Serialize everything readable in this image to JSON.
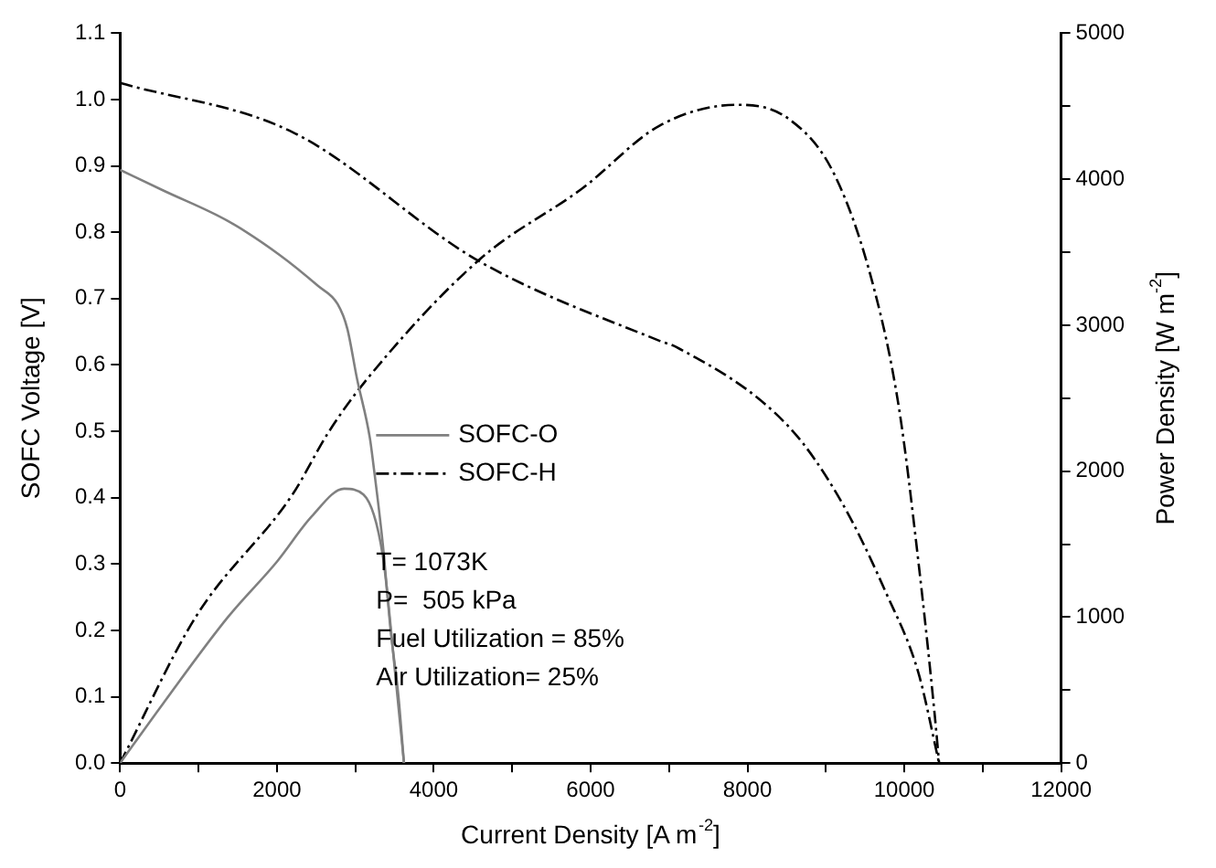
{
  "chart_data": {
    "type": "line",
    "xlabel": "Current Density [A m$^{-2}$]",
    "ylabel": "SOFC Voltage [V]",
    "y2label": "Power Density [W m$^{-2}$]",
    "xlim": [
      0,
      12000
    ],
    "xticks": [
      0,
      {
        "value": 1000,
        "label": null
      },
      2000,
      {
        "value": 3000,
        "label": null
      },
      4000,
      {
        "value": 5000,
        "label": null
      },
      6000,
      {
        "value": 7000,
        "label": null
      },
      8000,
      {
        "value": 9000,
        "label": null
      },
      10000,
      {
        "value": 11000,
        "label": null
      },
      12000
    ],
    "ylim": [
      0,
      1.1
    ],
    "yticks": [
      {
        "value": 0,
        "label": "0.0"
      },
      {
        "value": 0.1,
        "label": "0.1"
      },
      {
        "value": 0.2,
        "label": "0.2"
      },
      {
        "value": 0.3,
        "label": "0.3"
      },
      {
        "value": 0.4,
        "label": "0.4"
      },
      {
        "value": 0.5,
        "label": "0.5"
      },
      {
        "value": 0.6,
        "label": "0.6"
      },
      {
        "value": 0.7,
        "label": "0.7"
      },
      {
        "value": 0.8,
        "label": "0.8"
      },
      {
        "value": 0.9,
        "label": "0.9"
      },
      {
        "value": 1.0,
        "label": "1.0"
      },
      {
        "value": 1.1,
        "label": "1.1"
      }
    ],
    "y2lim": [
      0,
      5000
    ],
    "y2ticks": [
      0,
      {
        "value": 500,
        "label": null
      },
      1000,
      {
        "value": 1500,
        "label": null
      },
      2000,
      {
        "value": 2500,
        "label": null
      },
      3000,
      {
        "value": 3500,
        "label": null
      },
      4000,
      {
        "value": 4500,
        "label": null
      },
      5000
    ],
    "grid": false,
    "legend": "center",
    "marker": "none",
    "series": [
      {
        "name": "SOFC-O",
        "color": "#808080",
        "line_style": "solid",
        "x": [
          0,
          551,
          1375,
          2033,
          2526,
          2773,
          2897,
          3020,
          3185,
          3230,
          3350,
          3450,
          3550,
          3620
        ],
        "values": [
          0.894,
          0.863,
          0.817,
          0.766,
          0.719,
          0.692,
          0.655,
          0.58,
          0.49,
          0.45,
          0.33,
          0.2,
          0.1,
          0
        ]
      },
      {
        "color": "#808080",
        "line_style": "solid",
        "axis": "y2",
        "x": [
          0,
          551,
          1375,
          2000,
          2444,
          2857,
          3103,
          3350,
          3514,
          3620
        ],
        "values": [
          0,
          410,
          1000,
          1380,
          1690,
          1880,
          1840,
          1420,
          580,
          0
        ]
      },
      {
        "name": "SOFC-H",
        "color": "#000000",
        "line_style": "dashed",
        "x": [
          0,
          2198,
          4584,
          6889,
          7094,
          8535,
          9193,
          9770,
          10180,
          10444
        ],
        "values": [
          1.025,
          0.951,
          0.756,
          0.636,
          0.627,
          0.506,
          0.395,
          0.256,
          0.136,
          0
        ]
      },
      {
        "color": "#000000",
        "line_style": "dashed",
        "axis": "y2",
        "x": [
          0,
          963,
          2198,
          2650,
          3103,
          4584,
          5901,
          6889,
          7877,
          8535,
          9111,
          9605,
          9933,
          10180,
          10388,
          10444
        ],
        "values": [
          0,
          1000,
          1840,
          2260,
          2600,
          3450,
          3940,
          4370,
          4510,
          4410,
          4030,
          3270,
          2430,
          1380,
          330,
          0
        ]
      }
    ],
    "annotations": [
      "T= 1073K",
      "P=  505 kPa",
      "Fuel Utilization = 85%",
      "Air Utilization= 25%"
    ]
  }
}
